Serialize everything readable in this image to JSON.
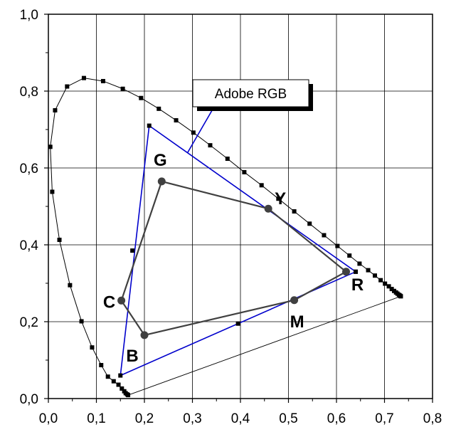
{
  "chart_data": {
    "type": "scatter",
    "title": "",
    "xlabel": "",
    "ylabel": "",
    "xlim": [
      0,
      0.8
    ],
    "ylim": [
      0,
      1.0
    ],
    "grid": true,
    "x_tick_labels": [
      "0,0",
      "0,1",
      "0,2",
      "0,3",
      "0,4",
      "0,5",
      "0,6",
      "0,7",
      "0,8"
    ],
    "y_tick_labels": [
      "0,0",
      "0,2",
      "0,4",
      "0,6",
      "0,8",
      "1,0"
    ],
    "series": [
      {
        "style": "line-with-square-markers",
        "color": "#000000",
        "points": [
          [
            0.166,
            0.009
          ],
          [
            0.164,
            0.011
          ],
          [
            0.161,
            0.014
          ],
          [
            0.158,
            0.019
          ],
          [
            0.153,
            0.026
          ],
          [
            0.146,
            0.036
          ],
          [
            0.136,
            0.045
          ],
          [
            0.124,
            0.057
          ],
          [
            0.11,
            0.087
          ],
          [
            0.091,
            0.133
          ],
          [
            0.069,
            0.201
          ],
          [
            0.045,
            0.295
          ],
          [
            0.023,
            0.413
          ],
          [
            0.008,
            0.538
          ],
          [
            0.004,
            0.655
          ],
          [
            0.014,
            0.75
          ],
          [
            0.039,
            0.812
          ],
          [
            0.074,
            0.834
          ],
          [
            0.114,
            0.826
          ],
          [
            0.155,
            0.806
          ],
          [
            0.193,
            0.782
          ],
          [
            0.23,
            0.754
          ],
          [
            0.266,
            0.724
          ],
          [
            0.302,
            0.692
          ],
          [
            0.337,
            0.659
          ],
          [
            0.373,
            0.624
          ],
          [
            0.408,
            0.589
          ],
          [
            0.444,
            0.555
          ],
          [
            0.479,
            0.52
          ],
          [
            0.512,
            0.487
          ],
          [
            0.544,
            0.455
          ],
          [
            0.574,
            0.425
          ],
          [
            0.602,
            0.397
          ],
          [
            0.627,
            0.372
          ],
          [
            0.648,
            0.351
          ],
          [
            0.666,
            0.334
          ],
          [
            0.68,
            0.32
          ],
          [
            0.692,
            0.308
          ],
          [
            0.701,
            0.299
          ],
          [
            0.709,
            0.292
          ],
          [
            0.715,
            0.285
          ],
          [
            0.72,
            0.28
          ],
          [
            0.724,
            0.276
          ],
          [
            0.727,
            0.273
          ],
          [
            0.73,
            0.27
          ],
          [
            0.732,
            0.268
          ],
          [
            0.733,
            0.267
          ],
          [
            0.734,
            0.266
          ]
        ]
      },
      {
        "name": "Adobe RGB",
        "style": "line-with-square-markers",
        "color": "#0000cc",
        "points": [
          [
            0.64,
            0.33
          ],
          [
            0.21,
            0.71
          ],
          [
            0.15,
            0.06
          ],
          [
            0.64,
            0.33
          ]
        ],
        "edge_midpoints": [
          [
            0.175,
            0.385
          ],
          [
            0.395,
            0.195
          ]
        ]
      },
      {
        "style": "line-with-circle-markers",
        "color": "#404040",
        "points": [
          [
            0.236,
            0.565
          ],
          [
            0.458,
            0.494
          ],
          [
            0.62,
            0.33
          ],
          [
            0.512,
            0.256
          ],
          [
            0.2,
            0.165
          ],
          [
            0.152,
            0.255
          ],
          [
            0.236,
            0.565
          ]
        ],
        "point_labels": [
          "G",
          "Y",
          "R",
          "M",
          "B",
          "C",
          ""
        ]
      },
      {
        "style": "thin-line",
        "color": "#000000",
        "points": [
          [
            0.166,
            0.009
          ],
          [
            0.734,
            0.266
          ]
        ]
      }
    ],
    "annotations": [
      {
        "text": "Adobe RGB",
        "points_to": [
          0.29,
          0.64
        ]
      }
    ]
  }
}
